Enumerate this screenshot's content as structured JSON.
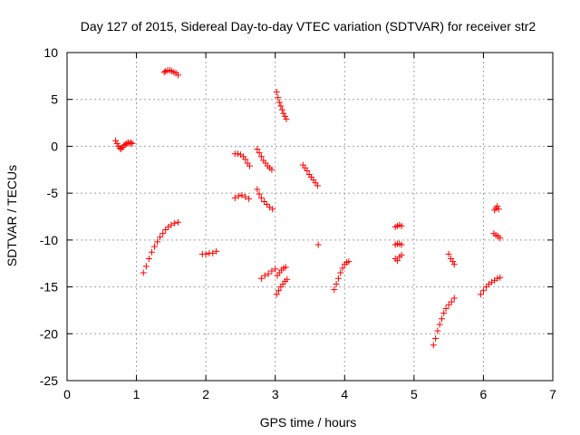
{
  "chart_data": {
    "type": "scatter",
    "title": "Day 127 of 2015, Sidereal Day-to-day VTEC variation (SDTVAR) for receiver str2",
    "xlabel": "GPS time / hours",
    "ylabel": "SDTVAR / TECUs",
    "xlim": [
      0,
      7
    ],
    "ylim": [
      -25,
      10
    ],
    "xticks": [
      0,
      1,
      2,
      3,
      4,
      5,
      6,
      7
    ],
    "yticks": [
      -25,
      -20,
      -15,
      -10,
      -5,
      0,
      5,
      10
    ],
    "grid": true,
    "legend": "none",
    "marker": "plus",
    "color": "#ff0000",
    "segments": [
      {
        "x": [
          0.7,
          0.72,
          0.74,
          0.76,
          0.78,
          0.8
        ],
        "y": [
          0.6,
          0.3,
          0.0,
          -0.2,
          -0.3,
          -0.1
        ]
      },
      {
        "x": [
          0.82,
          0.84,
          0.86,
          0.88,
          0.9,
          0.92,
          0.94
        ],
        "y": [
          0.1,
          0.2,
          0.3,
          0.4,
          0.3,
          0.4,
          0.3
        ]
      },
      {
        "x": [
          1.4,
          1.42,
          1.45,
          1.48,
          1.51,
          1.54,
          1.57,
          1.6
        ],
        "y": [
          7.9,
          8.0,
          8.1,
          8.1,
          8.0,
          7.9,
          7.8,
          7.6
        ]
      },
      {
        "x": [
          1.1,
          1.14,
          1.18,
          1.22,
          1.26,
          1.3,
          1.34,
          1.38,
          1.42,
          1.46,
          1.5,
          1.55,
          1.6
        ],
        "y": [
          -13.5,
          -12.8,
          -12.0,
          -11.3,
          -10.7,
          -10.2,
          -9.7,
          -9.3,
          -8.9,
          -8.6,
          -8.4,
          -8.2,
          -8.1
        ]
      },
      {
        "x": [
          1.95,
          2.0,
          2.05,
          2.1,
          2.15
        ],
        "y": [
          -11.5,
          -11.5,
          -11.4,
          -11.4,
          -11.2
        ]
      },
      {
        "x": [
          2.42,
          2.46,
          2.5,
          2.54,
          2.57,
          2.6,
          2.63
        ],
        "y": [
          -0.8,
          -0.8,
          -0.9,
          -1.1,
          -1.4,
          -1.8,
          -2.1
        ]
      },
      {
        "x": [
          2.42,
          2.47,
          2.52,
          2.57,
          2.62
        ],
        "y": [
          -5.5,
          -5.3,
          -5.2,
          -5.4,
          -5.6
        ]
      },
      {
        "x": [
          2.74,
          2.77,
          2.8,
          2.83,
          2.86,
          2.89,
          2.92,
          2.95
        ],
        "y": [
          -0.3,
          -0.7,
          -1.1,
          -1.5,
          -1.8,
          -2.1,
          -2.3,
          -2.5
        ]
      },
      {
        "x": [
          2.74,
          2.77,
          2.8,
          2.84,
          2.88,
          2.92,
          2.96
        ],
        "y": [
          -4.6,
          -5.1,
          -5.5,
          -5.9,
          -6.2,
          -6.5,
          -6.7
        ]
      },
      {
        "x": [
          2.8,
          2.85,
          2.9,
          2.95,
          3.0
        ],
        "y": [
          -14.1,
          -13.8,
          -13.6,
          -13.3,
          -13.1
        ]
      },
      {
        "x": [
          3.02,
          3.04,
          3.06,
          3.08,
          3.1,
          3.12,
          3.14,
          3.16
        ],
        "y": [
          5.8,
          5.2,
          4.7,
          4.3,
          3.9,
          3.5,
          3.2,
          2.9
        ]
      },
      {
        "x": [
          3.03,
          3.06,
          3.09,
          3.12,
          3.15
        ],
        "y": [
          -13.8,
          -13.5,
          -13.2,
          -13.0,
          -12.9
        ]
      },
      {
        "x": [
          3.02,
          3.05,
          3.08,
          3.11,
          3.14,
          3.17
        ],
        "y": [
          -15.8,
          -15.4,
          -15.0,
          -14.7,
          -14.4,
          -14.2
        ]
      },
      {
        "x": [
          3.4,
          3.43,
          3.46,
          3.49,
          3.52,
          3.55,
          3.58,
          3.61
        ],
        "y": [
          -2.0,
          -2.3,
          -2.6,
          -3.0,
          -3.3,
          -3.6,
          -3.9,
          -4.2
        ]
      },
      {
        "x": [
          3.62
        ],
        "y": [
          -10.5
        ]
      },
      {
        "x": [
          3.85,
          3.88,
          3.91,
          3.94,
          3.97,
          4.0,
          4.03,
          4.06
        ],
        "y": [
          -15.3,
          -14.7,
          -14.1,
          -13.5,
          -13.0,
          -12.6,
          -12.4,
          -12.3
        ]
      },
      {
        "x": [
          4.73,
          4.76,
          4.79,
          4.82
        ],
        "y": [
          -8.6,
          -8.5,
          -8.4,
          -8.5
        ]
      },
      {
        "x": [
          4.73,
          4.76,
          4.79,
          4.82
        ],
        "y": [
          -10.5,
          -10.4,
          -10.4,
          -10.5
        ]
      },
      {
        "x": [
          4.73,
          4.76,
          4.79,
          4.82
        ],
        "y": [
          -12.0,
          -12.2,
          -11.8,
          -11.6
        ]
      },
      {
        "x": [
          5.28,
          5.31,
          5.34,
          5.37,
          5.4,
          5.43,
          5.46,
          5.5,
          5.54,
          5.58
        ],
        "y": [
          -21.2,
          -20.5,
          -19.7,
          -19.0,
          -18.4,
          -17.8,
          -17.3,
          -16.9,
          -16.6,
          -16.2
        ]
      },
      {
        "x": [
          5.5,
          5.53,
          5.56,
          5.58
        ],
        "y": [
          -11.5,
          -12.0,
          -12.3,
          -12.6
        ]
      },
      {
        "x": [
          5.96,
          6.0,
          6.04,
          6.08,
          6.12,
          6.16,
          6.2,
          6.24
        ],
        "y": [
          -15.8,
          -15.4,
          -15.0,
          -14.7,
          -14.5,
          -14.3,
          -14.1,
          -14.0
        ]
      },
      {
        "x": [
          6.16,
          6.18,
          6.2,
          6.22
        ],
        "y": [
          -6.8,
          -6.6,
          -6.4,
          -6.7
        ]
      },
      {
        "x": [
          6.15,
          6.18,
          6.21,
          6.24
        ],
        "y": [
          -9.3,
          -9.5,
          -9.6,
          -9.8
        ]
      }
    ]
  }
}
